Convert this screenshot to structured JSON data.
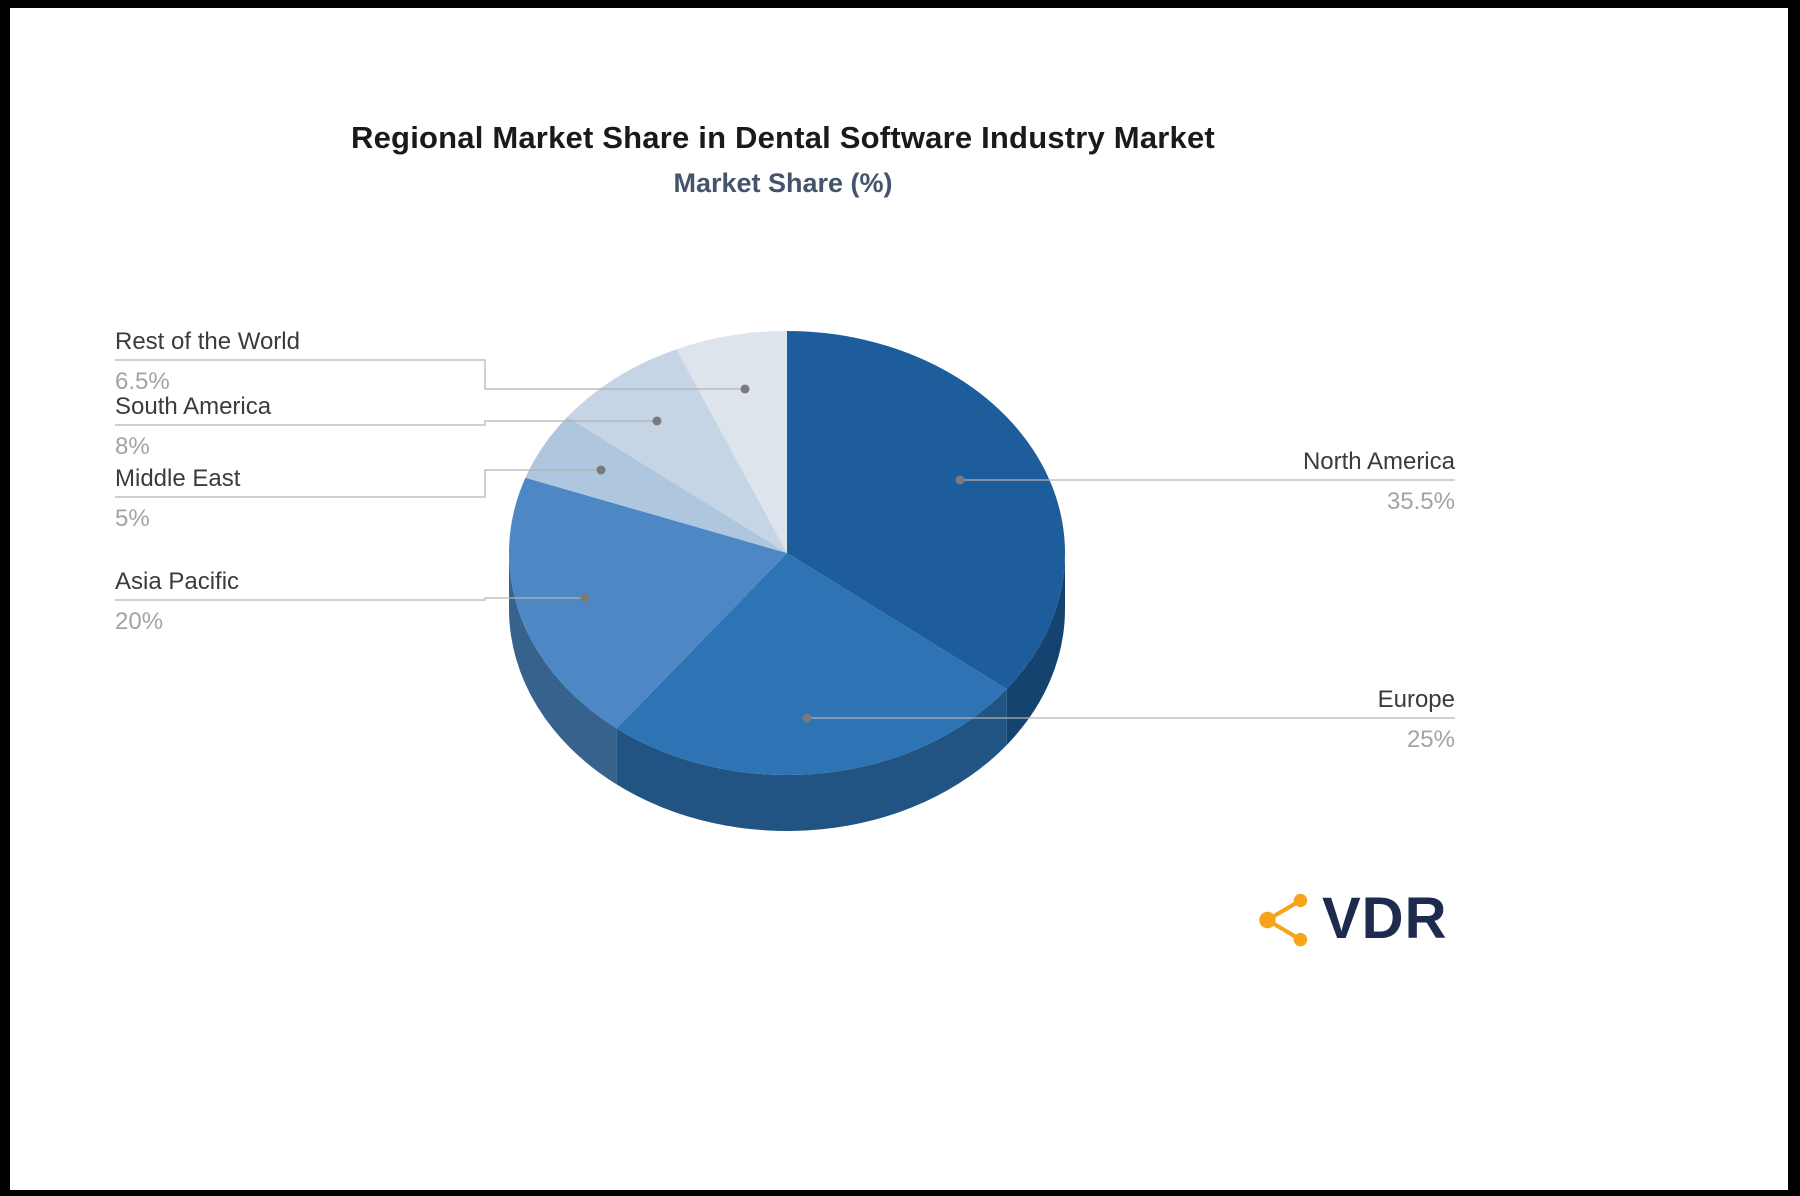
{
  "chart_data": {
    "type": "pie",
    "style": "3d-pie",
    "title": "Regional Market Share in Dental Software Industry Market",
    "subtitle": "Market Share (%)",
    "unit": "%",
    "start_angle_deg": -90,
    "direction": "clockwise",
    "slices": [
      {
        "label": "North America",
        "value": 35.5,
        "display": "35.5%",
        "color": "#1d5d9b",
        "side": "right"
      },
      {
        "label": "Europe",
        "value": 25,
        "display": "25%",
        "color": "#2e74b5",
        "side": "right"
      },
      {
        "label": "Asia Pacific",
        "value": 20,
        "display": "20%",
        "color": "#4d88c4",
        "side": "left"
      },
      {
        "label": "Middle East",
        "value": 5,
        "display": "5%",
        "color": "#aec7de",
        "side": "left"
      },
      {
        "label": "South America",
        "value": 8,
        "display": "8%",
        "color": "#c6d5e5",
        "side": "left"
      },
      {
        "label": "Rest of the World",
        "value": 6.5,
        "display": "6.5%",
        "color": "#dde4ec",
        "side": "left"
      }
    ],
    "legend_position": "none",
    "label_line_color": "#b3b3b3",
    "label_dot_color": "#7a7a7a"
  },
  "logo": {
    "text": "VDR",
    "icon": "network-share-icon",
    "icon_color": "#f7a41d",
    "text_color": "#1e2b4f"
  }
}
